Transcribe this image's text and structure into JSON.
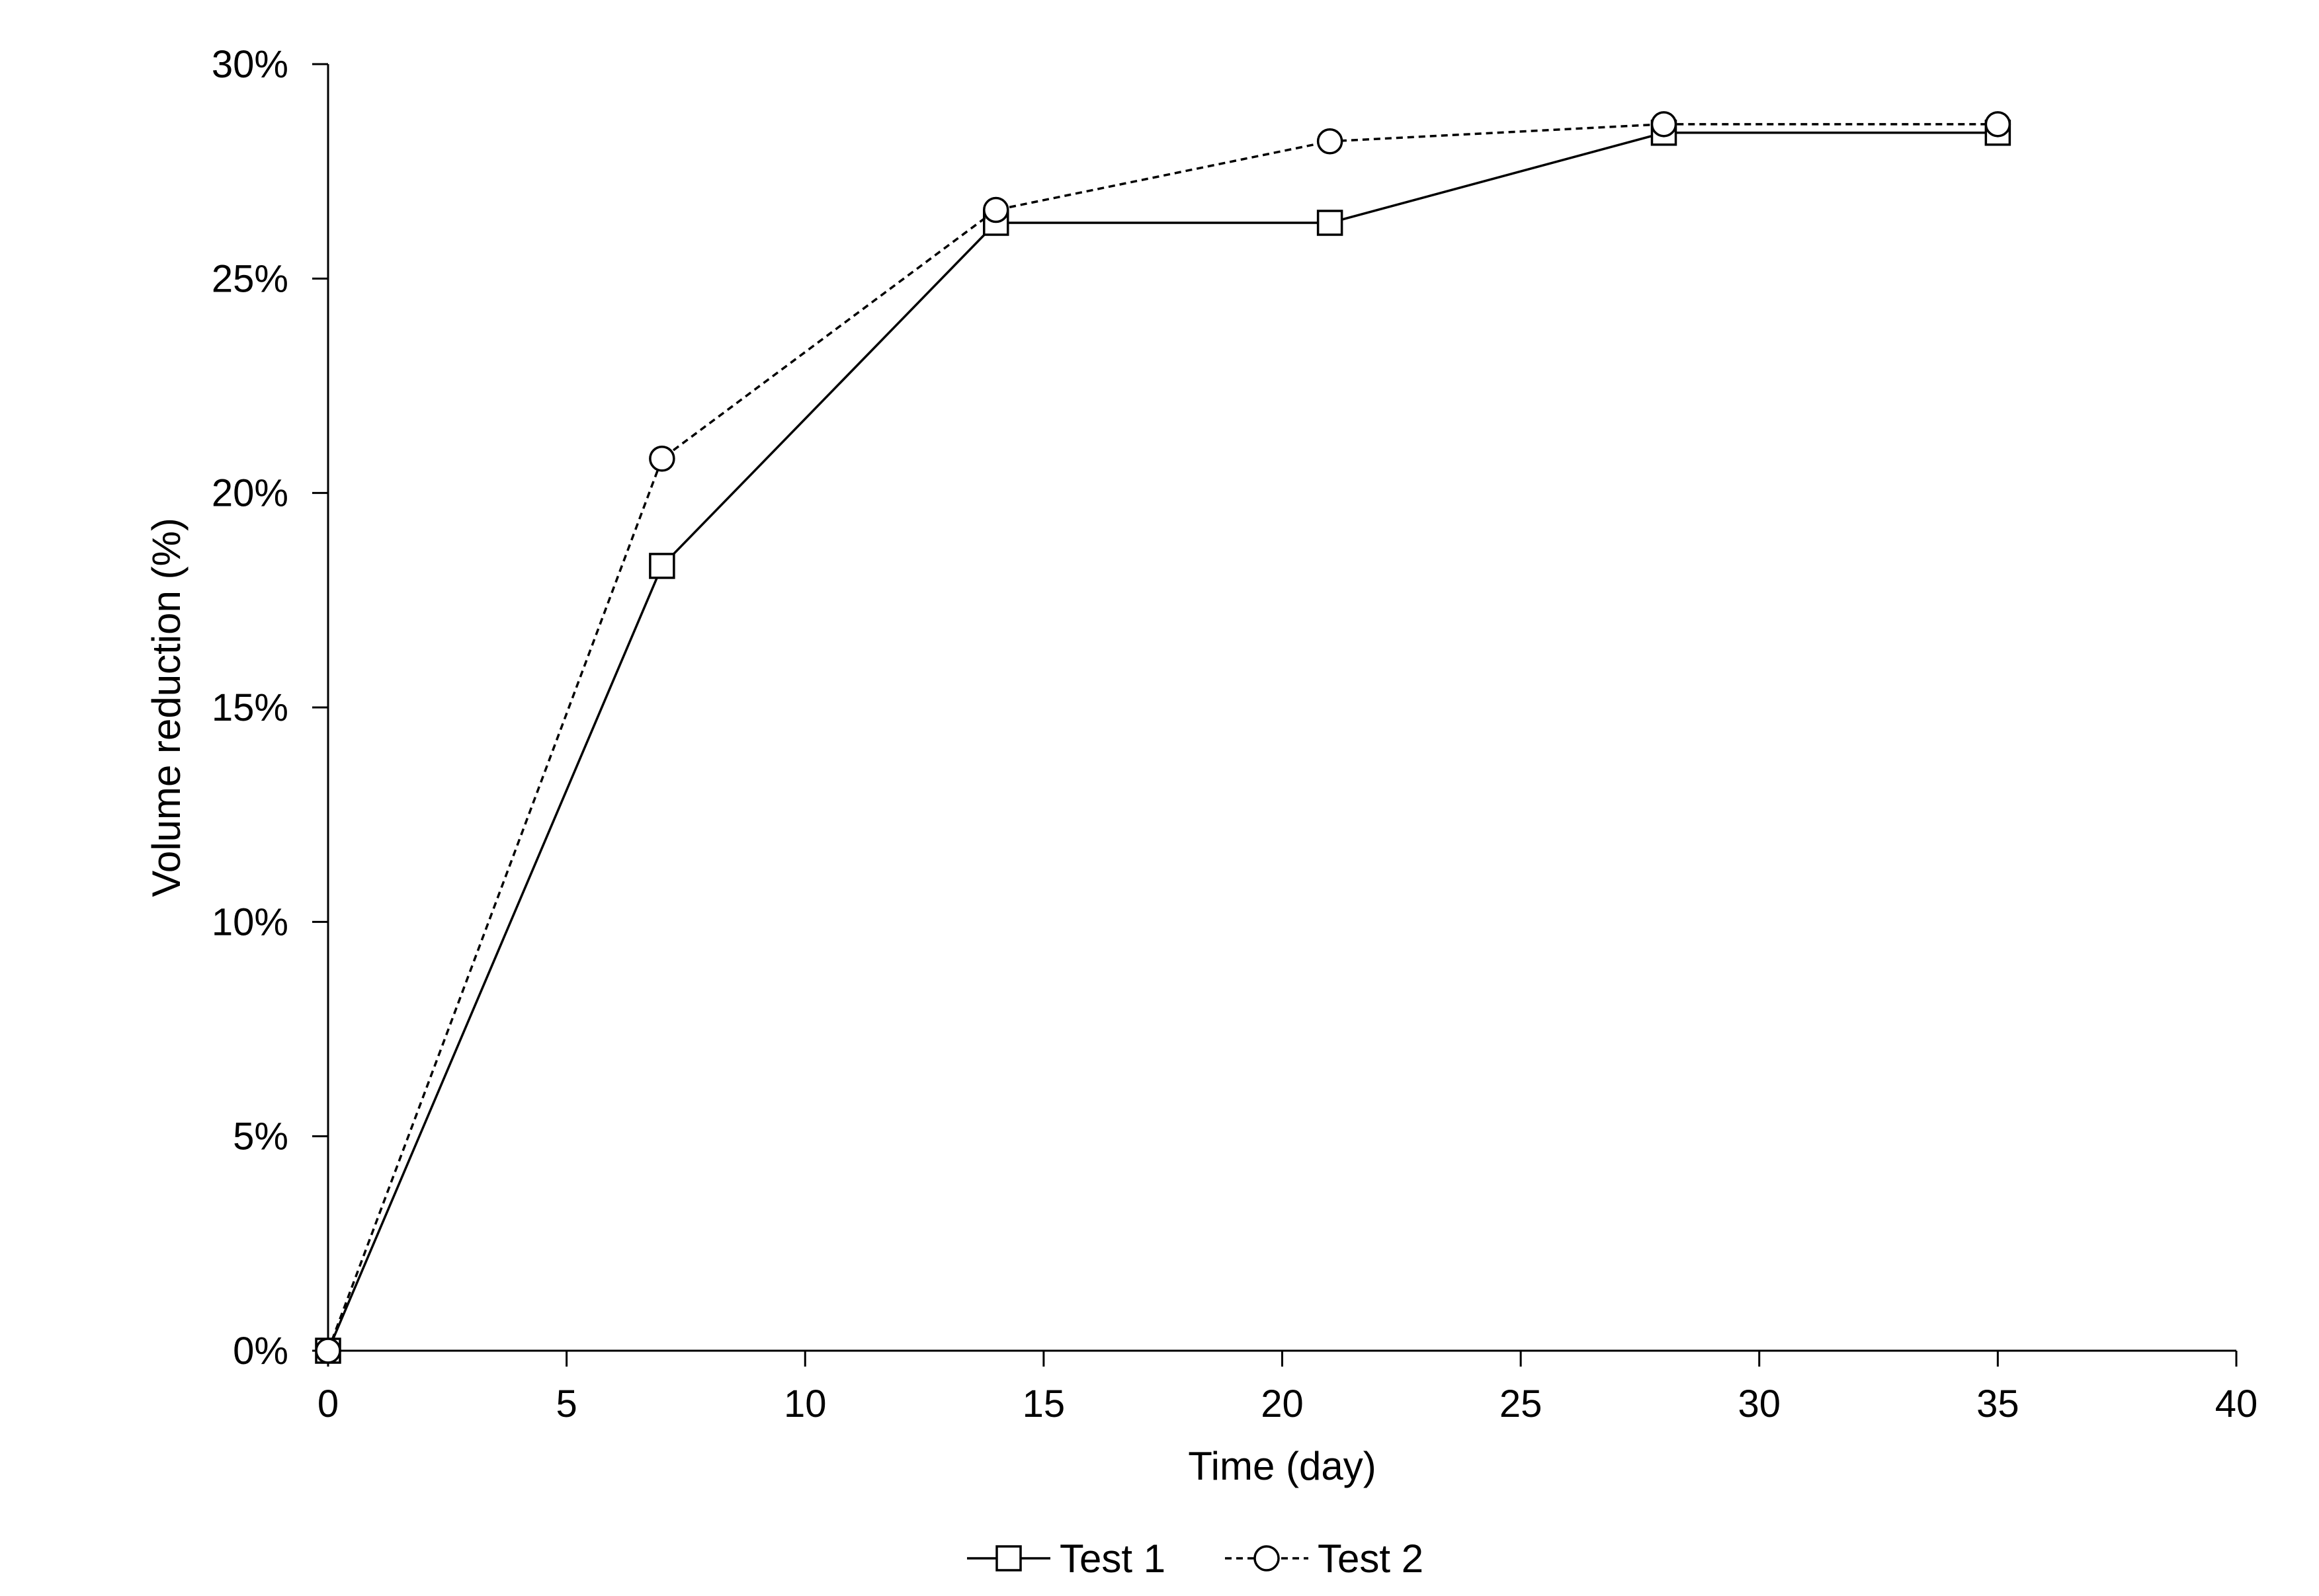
{
  "chart_data": {
    "type": "line",
    "title": "",
    "xlabel": "Time (day)",
    "ylabel": "Volume reduction (%)",
    "xlim": [
      0,
      40
    ],
    "ylim": [
      0,
      0.3
    ],
    "x_ticks": [
      0,
      5,
      10,
      15,
      20,
      25,
      30,
      35,
      40
    ],
    "x_tick_labels": [
      "0",
      "5",
      "10",
      "15",
      "20",
      "25",
      "30",
      "35",
      "40"
    ],
    "y_ticks": [
      0,
      0.05,
      0.1,
      0.15,
      0.2,
      0.25,
      0.3
    ],
    "y_tick_labels": [
      "0%",
      "5%",
      "10%",
      "15%",
      "20%",
      "25%",
      "30%"
    ],
    "grid": false,
    "legend_position": "bottom-center",
    "series": [
      {
        "name": "Test 1",
        "marker": "square",
        "line_style": "solid",
        "color": "#000000",
        "x": [
          0,
          7,
          14,
          21,
          28,
          35
        ],
        "y": [
          0.0,
          0.183,
          0.263,
          0.263,
          0.284,
          0.284
        ]
      },
      {
        "name": "Test 2",
        "marker": "circle",
        "line_style": "dashed",
        "color": "#000000",
        "x": [
          0,
          7,
          14,
          21,
          28,
          35
        ],
        "y": [
          0.0,
          0.208,
          0.266,
          0.282,
          0.286,
          0.286
        ]
      }
    ]
  }
}
